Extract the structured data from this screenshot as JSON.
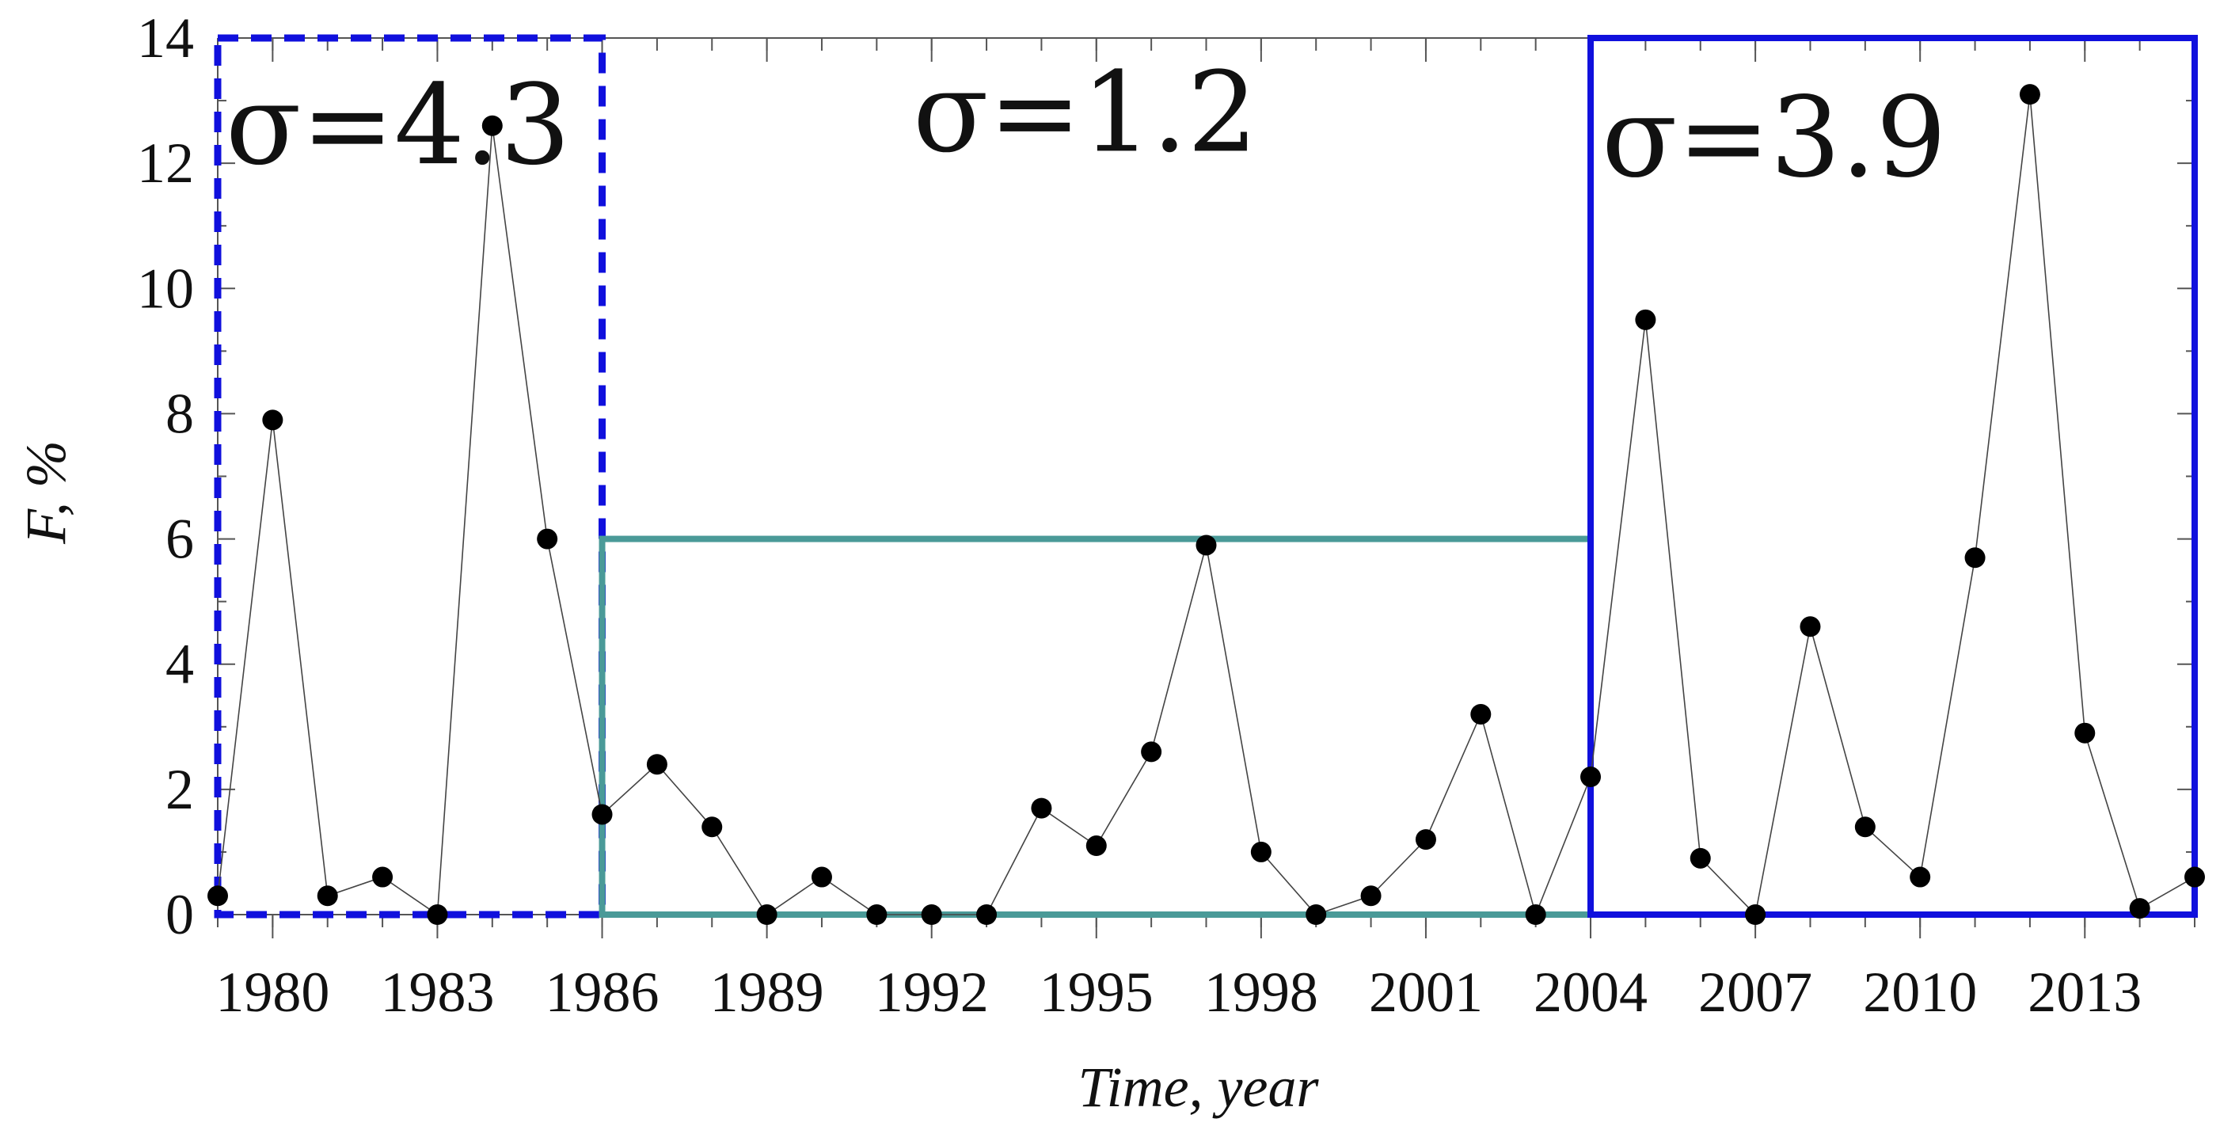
{
  "chart_data": {
    "type": "line",
    "xlabel": "Time, year",
    "ylabel": "F, %",
    "ylim": [
      0,
      14
    ],
    "xlim": [
      1979,
      2015
    ],
    "yticks": [
      0,
      2,
      4,
      6,
      8,
      10,
      12,
      14
    ],
    "ytick_labels": [
      "0",
      "2",
      "4",
      "6",
      "8",
      "10",
      "12",
      "14"
    ],
    "xticks": [
      1980,
      1983,
      1986,
      1989,
      1992,
      1995,
      1998,
      2001,
      2004,
      2007,
      2010,
      2013
    ],
    "xtick_labels": [
      "1980",
      "1983",
      "1986",
      "1989",
      "1992",
      "1995",
      "1998",
      "2001",
      "2004",
      "2007",
      "2010",
      "2013"
    ],
    "grid": false,
    "series": [
      {
        "x": [
          1979,
          1980,
          1981,
          1982,
          1983,
          1984,
          1985,
          1986,
          1987,
          1988,
          1989,
          1990,
          1991,
          1992,
          1993,
          1994,
          1995,
          1996,
          1997,
          1998,
          1999,
          2000,
          2001,
          2002,
          2003,
          2004,
          2005,
          2006,
          2007,
          2008,
          2009,
          2010,
          2011,
          2012,
          2013,
          2014,
          2015
        ],
        "values": [
          0.3,
          7.9,
          0.3,
          0.6,
          0.0,
          12.6,
          6.0,
          1.6,
          2.4,
          1.4,
          0.0,
          0.6,
          0.0,
          0.0,
          0.0,
          1.7,
          1.1,
          2.6,
          5.9,
          1.0,
          0.0,
          0.3,
          1.2,
          3.2,
          0.0,
          2.2,
          9.5,
          0.9,
          0.0,
          4.6,
          1.4,
          0.6,
          5.7,
          13.1,
          2.9,
          0.1,
          0.6
        ]
      }
    ],
    "annotations": [
      {
        "text": "σ=4.3",
        "x_range": [
          1979,
          1986
        ],
        "y_range": [
          0,
          14
        ],
        "style": "dashed",
        "color": "#1010dd"
      },
      {
        "text": "σ=1.2",
        "x_range": [
          1986,
          2004
        ],
        "y_range": [
          0,
          6
        ],
        "style": "solid",
        "color": "#4a9a98"
      },
      {
        "text": "σ=3.9",
        "x_range": [
          2004,
          2015
        ],
        "y_range": [
          0,
          14
        ],
        "style": "solid",
        "color": "#1010dd"
      }
    ]
  }
}
